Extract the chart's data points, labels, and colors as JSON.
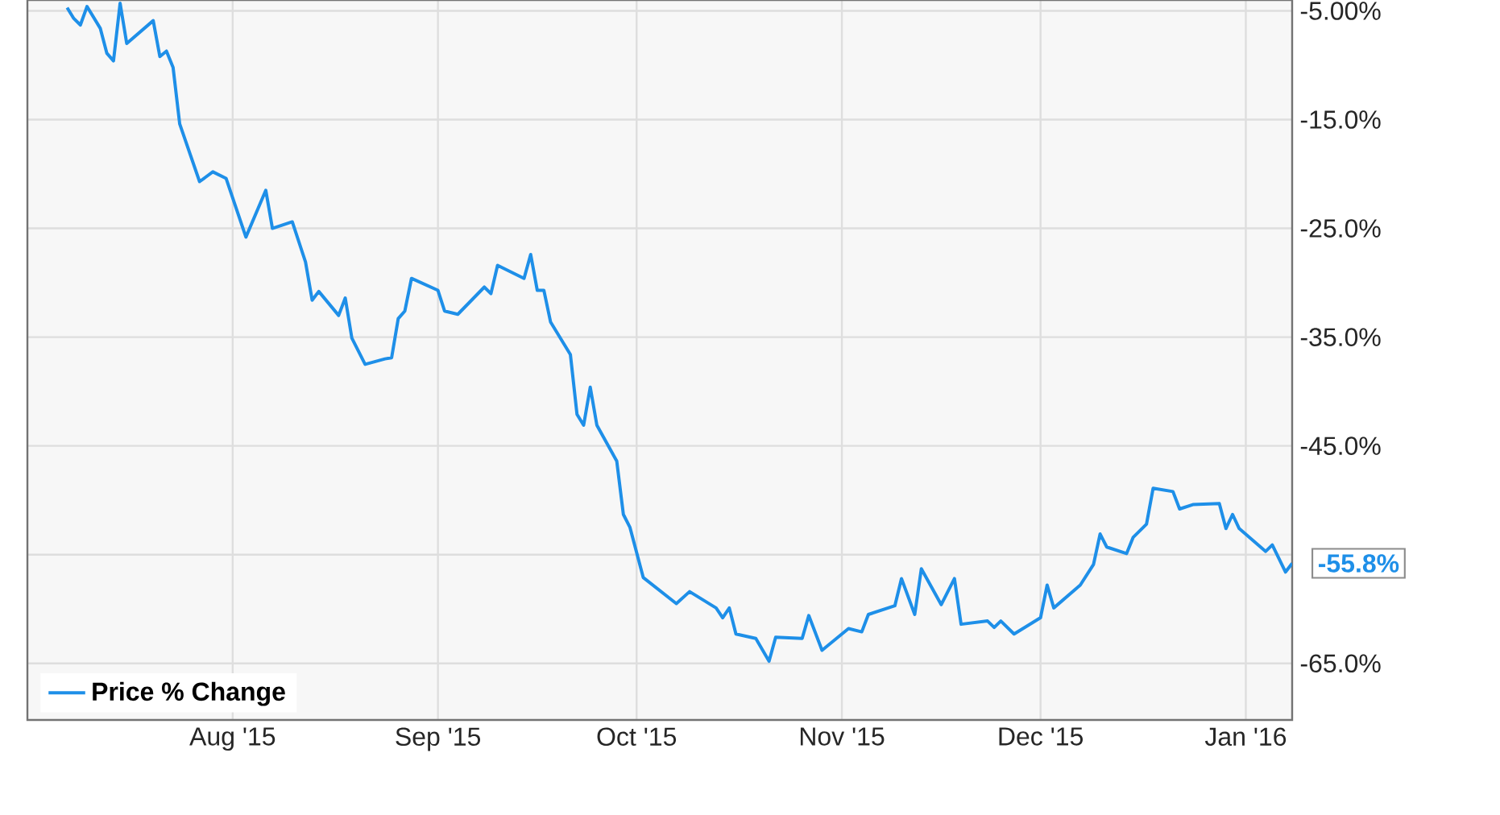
{
  "chart_data": {
    "type": "line",
    "xlim": [
      "2015-07-01",
      "2016-01-08"
    ],
    "ylim": [
      -70.2,
      -4
    ],
    "xticks": [
      {
        "value": "2015-08-01",
        "label": "Aug '15"
      },
      {
        "value": "2015-09-01",
        "label": "Sep '15"
      },
      {
        "value": "2015-10-01",
        "label": "Oct '15"
      },
      {
        "value": "2015-11-01",
        "label": "Nov '15"
      },
      {
        "value": "2015-12-01",
        "label": "Dec '15"
      },
      {
        "value": "2016-01-01",
        "label": "Jan '16"
      }
    ],
    "yticks": [
      {
        "value": -5,
        "label": "-5.00%"
      },
      {
        "value": -15,
        "label": "-15.0%"
      },
      {
        "value": -25,
        "label": "-25.0%"
      },
      {
        "value": -35,
        "label": "-35.0%"
      },
      {
        "value": -45,
        "label": "-45.0%"
      },
      {
        "value": -55,
        "label": null
      },
      {
        "value": -65,
        "label": "-65.0%"
      }
    ],
    "grid": true,
    "legend": "bottom left",
    "marker": "none",
    "line_style": "solid",
    "annotations": [
      {
        "text": "-55.8%",
        "x": "2016-01-08",
        "y": -55.8
      }
    ],
    "series": [
      {
        "name": "Price % Change",
        "color": "#1e8fe8",
        "x": [
          "2015-07-07",
          "2015-07-08",
          "2015-07-09",
          "2015-07-10",
          "2015-07-12",
          "2015-07-13",
          "2015-07-14",
          "2015-07-15",
          "2015-07-16",
          "2015-07-20",
          "2015-07-21",
          "2015-07-22",
          "2015-07-23",
          "2015-07-24",
          "2015-07-27",
          "2015-07-29",
          "2015-07-31",
          "2015-08-03",
          "2015-08-06",
          "2015-08-07",
          "2015-08-10",
          "2015-08-12",
          "2015-08-13",
          "2015-08-14",
          "2015-08-17",
          "2015-08-18",
          "2015-08-19",
          "2015-08-21",
          "2015-08-24",
          "2015-08-25",
          "2015-08-26",
          "2015-08-27",
          "2015-08-28",
          "2015-09-01",
          "2015-09-02",
          "2015-09-04",
          "2015-09-08",
          "2015-09-09",
          "2015-09-10",
          "2015-09-14",
          "2015-09-15",
          "2015-09-16",
          "2015-09-17",
          "2015-09-18",
          "2015-09-21",
          "2015-09-22",
          "2015-09-23",
          "2015-09-24",
          "2015-09-25",
          "2015-09-28",
          "2015-09-29",
          "2015-09-30",
          "2015-10-02",
          "2015-10-07",
          "2015-10-09",
          "2015-10-13",
          "2015-10-14",
          "2015-10-15",
          "2015-10-16",
          "2015-10-19",
          "2015-10-21",
          "2015-10-22",
          "2015-10-26",
          "2015-10-27",
          "2015-10-29",
          "2015-11-02",
          "2015-11-04",
          "2015-11-05",
          "2015-11-09",
          "2015-11-10",
          "2015-11-12",
          "2015-11-13",
          "2015-11-16",
          "2015-11-18",
          "2015-11-19",
          "2015-11-23",
          "2015-11-24",
          "2015-11-25",
          "2015-11-27",
          "2015-12-01",
          "2015-12-02",
          "2015-12-03",
          "2015-12-07",
          "2015-12-09",
          "2015-12-10",
          "2015-12-11",
          "2015-12-14",
          "2015-12-15",
          "2015-12-17",
          "2015-12-18",
          "2015-12-21",
          "2015-12-22",
          "2015-12-24",
          "2015-12-28",
          "2015-12-29",
          "2015-12-30",
          "2015-12-31",
          "2016-01-04",
          "2016-01-05",
          "2016-01-07",
          "2016-01-08"
        ],
        "values": [
          -4.7,
          -5.7,
          -6.3,
          -4.6,
          -6.6,
          -8.9,
          -9.6,
          -4.3,
          -8.0,
          -5.9,
          -9.2,
          -8.7,
          -10.2,
          -15.4,
          -20.7,
          -19.8,
          -20.4,
          -25.8,
          -21.5,
          -25.0,
          -24.4,
          -28.1,
          -31.6,
          -30.8,
          -33.0,
          -31.4,
          -35.1,
          -37.5,
          -37.0,
          -36.9,
          -33.3,
          -32.6,
          -29.6,
          -30.7,
          -32.6,
          -32.9,
          -30.4,
          -31.0,
          -28.4,
          -29.6,
          -27.4,
          -30.7,
          -30.7,
          -33.6,
          -36.6,
          -42.1,
          -43.1,
          -39.6,
          -43.1,
          -46.4,
          -51.3,
          -52.5,
          -57.1,
          -59.5,
          -58.4,
          -59.9,
          -60.8,
          -59.9,
          -62.3,
          -62.7,
          -64.8,
          -62.6,
          -62.7,
          -60.6,
          -63.8,
          -61.8,
          -62.1,
          -60.5,
          -59.7,
          -57.2,
          -60.5,
          -56.3,
          -59.6,
          -57.2,
          -61.4,
          -61.1,
          -61.7,
          -61.1,
          -62.3,
          -60.8,
          -57.8,
          -59.9,
          -57.8,
          -55.9,
          -53.1,
          -54.3,
          -54.9,
          -53.4,
          -52.2,
          -48.9,
          -49.2,
          -50.8,
          -50.4,
          -50.3,
          -52.6,
          -51.3,
          -52.6,
          -54.7,
          -54.1,
          -56.6,
          -55.8
        ]
      }
    ]
  }
}
